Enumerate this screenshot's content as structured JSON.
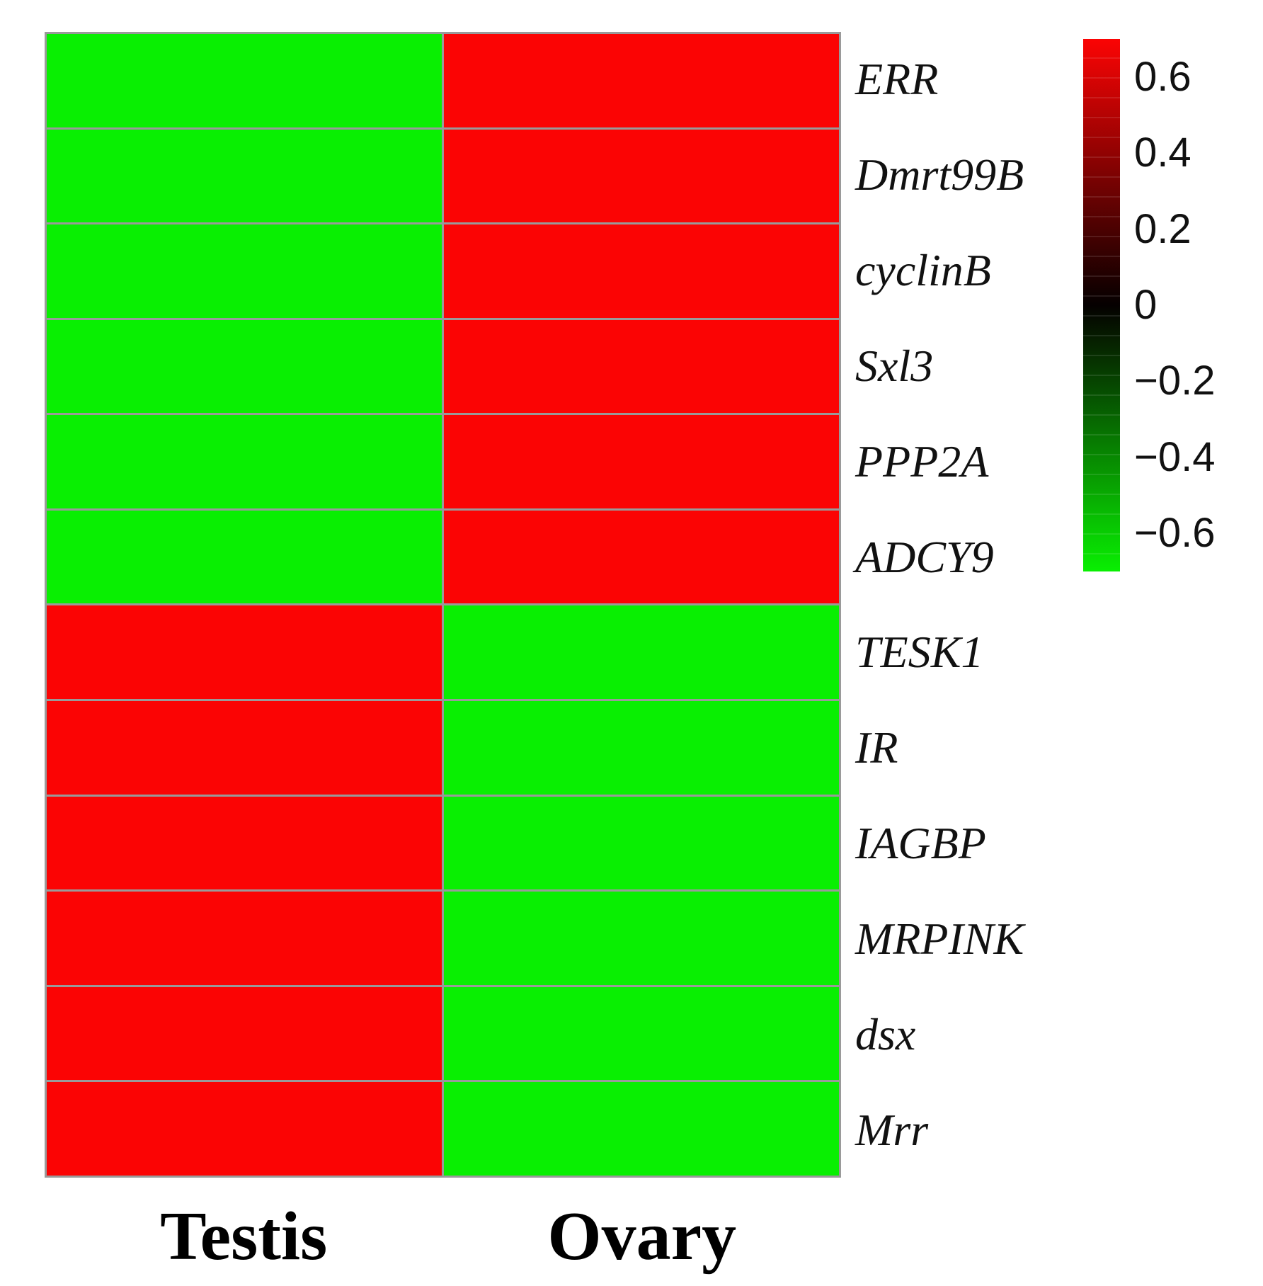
{
  "colorbar": {
    "tick_labels": [
      "0.6",
      "0.4",
      "0.2",
      "0",
      "−0.2",
      "−0.4",
      "−0.6"
    ]
  },
  "chart_data": {
    "type": "heatmap",
    "title": "",
    "columns": [
      "Testis",
      "Ovary"
    ],
    "rows": [
      "ERR",
      "Dmrt99B",
      "cyclinB",
      "Sxl3",
      "PPP2A",
      "ADCY9",
      "TESK1",
      "IR",
      "IAGBP",
      "MRPINK",
      "dsx",
      "Mrr"
    ],
    "values": [
      [
        -0.7,
        0.7
      ],
      [
        -0.7,
        0.7
      ],
      [
        -0.7,
        0.7
      ],
      [
        -0.7,
        0.7
      ],
      [
        -0.7,
        0.7
      ],
      [
        -0.7,
        0.7
      ],
      [
        0.7,
        -0.7
      ],
      [
        0.7,
        -0.7
      ],
      [
        0.7,
        -0.7
      ],
      [
        0.7,
        -0.7
      ],
      [
        0.7,
        -0.7
      ],
      [
        0.7,
        -0.7
      ]
    ],
    "colorscale": {
      "type": "green-black-red",
      "min": -0.7,
      "max": 0.7,
      "positive_color": "#fb0404",
      "zero_color": "#050000",
      "negative_color": "#09ef02"
    },
    "legend_tick_values": [
      0.6,
      0.4,
      0.2,
      0,
      -0.2,
      -0.4,
      -0.6
    ],
    "legend_position": "right",
    "grid_color": "#9a9a9a",
    "grid": true
  }
}
